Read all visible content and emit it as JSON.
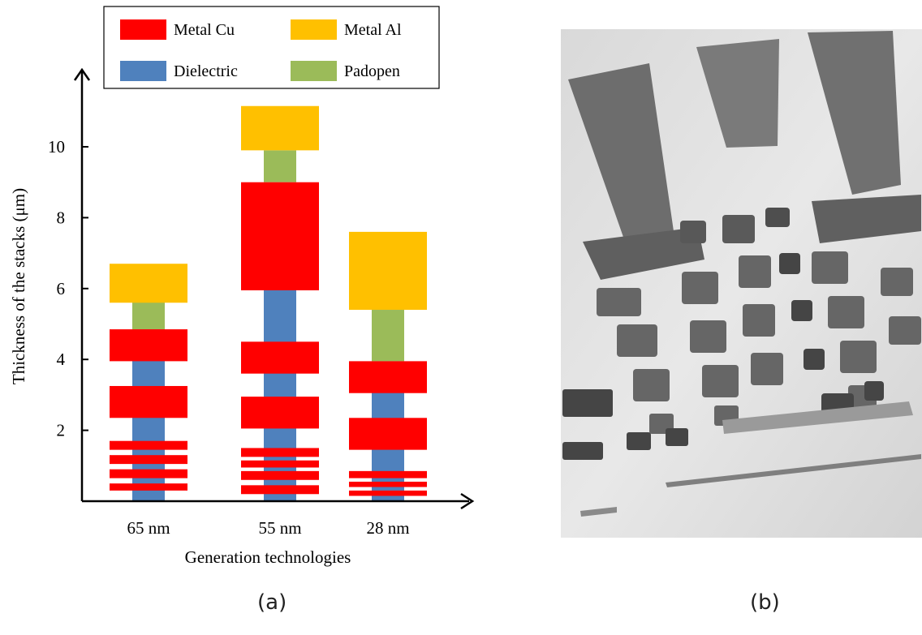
{
  "chart_data": {
    "type": "bar",
    "stacked": true,
    "xlabel": "Generation technologies",
    "ylabel": "Thickness of the stacks (μm)",
    "ylim": [
      0,
      11.5
    ],
    "yticks": [
      2,
      4,
      6,
      8,
      10
    ],
    "legend_position": "top",
    "categories": [
      "65 nm",
      "55 nm",
      "28 nm"
    ],
    "series": [
      {
        "name": "Metal Cu",
        "color": "#ff0000"
      },
      {
        "name": "Metal Al",
        "color": "#ffc000"
      },
      {
        "name": "Dielectric",
        "color": "#4f81bd"
      },
      {
        "name": "Padopen",
        "color": "#9bbb59"
      }
    ],
    "stacks": [
      {
        "category": "65 nm",
        "dielectric": [
          0.0,
          4.85
        ],
        "padopen": [
          4.85,
          5.65
        ],
        "al": [
          5.6,
          6.7
        ],
        "cu": [
          [
            0.3,
            0.5
          ],
          [
            0.65,
            0.9
          ],
          [
            1.05,
            1.3
          ],
          [
            1.45,
            1.7
          ],
          [
            2.35,
            3.25
          ],
          [
            3.95,
            4.85
          ]
        ]
      },
      {
        "category": "55 nm",
        "dielectric": [
          0.0,
          5.95
        ],
        "padopen": [
          9.0,
          9.9
        ],
        "al": [
          9.9,
          11.15
        ],
        "cu": [
          [
            0.2,
            0.45
          ],
          [
            0.6,
            0.85
          ],
          [
            0.95,
            1.15
          ],
          [
            1.25,
            1.5
          ],
          [
            2.05,
            2.95
          ],
          [
            3.6,
            4.5
          ],
          [
            5.95,
            9.0
          ]
        ]
      },
      {
        "category": "28 nm",
        "dielectric": [
          0.0,
          3.95
        ],
        "padopen": [
          3.95,
          5.4
        ],
        "al": [
          5.4,
          7.6
        ],
        "cu": [
          [
            0.15,
            0.3
          ],
          [
            0.4,
            0.55
          ],
          [
            0.65,
            0.85
          ],
          [
            1.45,
            2.35
          ],
          [
            3.05,
            3.95
          ]
        ]
      }
    ]
  },
  "panels": {
    "a": "(a)",
    "b": "(b)"
  }
}
